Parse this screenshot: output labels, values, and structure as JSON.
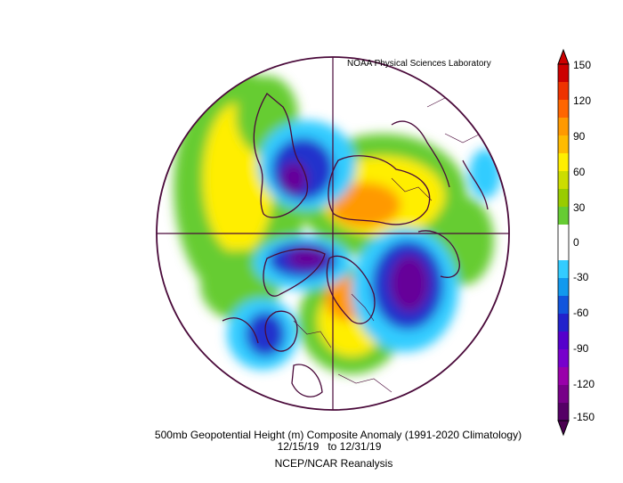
{
  "credit": "NOAA Physical Sciences Laboratory",
  "caption": {
    "line1": "500mb Geopotential Height (m) Composite Anomaly (1991-2020 Climatology)",
    "line2": "12/15/19   to 12/31/19",
    "line3": "NCEP/NCAR Reanalysis"
  },
  "colorbar": {
    "ticks": [
      "150",
      "120",
      "90",
      "60",
      "30",
      "0",
      "-30",
      "-60",
      "-90",
      "-120",
      "-150"
    ],
    "colors": [
      "#cc0000",
      "#ee3300",
      "#ff6600",
      "#ff9900",
      "#ffbb00",
      "#ffee00",
      "#ccdd00",
      "#99cc00",
      "#66cc33",
      "#ffffff",
      "#ffffff",
      "#33ccff",
      "#1199ee",
      "#1155dd",
      "#2222cc",
      "#5500cc",
      "#7700cc",
      "#9900aa",
      "#770088",
      "#550066"
    ],
    "top_arrow_color": "#cc0000",
    "bottom_arrow_color": "#4a0050"
  },
  "anomaly_colors": {
    "positive_weak": "#66cc33",
    "positive_mid": "#ffee00",
    "positive_strong": "#ff9900",
    "negative_weak": "#33ccff",
    "negative_mid": "#2233cc",
    "negative_strong": "#660099"
  }
}
